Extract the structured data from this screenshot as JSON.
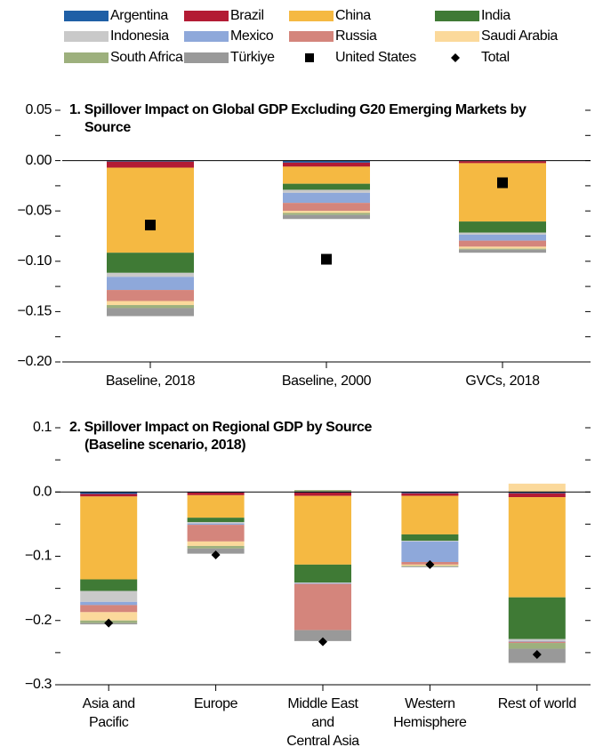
{
  "chart_data": [
    {
      "type": "bar",
      "stacked": true,
      "title": "1. Spillover Impact on Global GDP Excluding G20 Emerging Markets by Source",
      "categories": [
        "Baseline, 2018",
        "Baseline, 2000",
        "GVCs, 2018"
      ],
      "ylim": [
        -0.2,
        0.05
      ],
      "yticks": [
        {
          "value": 0.05,
          "label": "0.05"
        },
        {
          "value": 0,
          "label": "0.00"
        },
        {
          "value": -0.05,
          "label": "−0.05"
        },
        {
          "value": -0.1,
          "label": "−0.10"
        },
        {
          "value": -0.15,
          "label": "−0.15"
        },
        {
          "value": -0.2,
          "label": "−0.20"
        }
      ],
      "yminor": [
        0.025,
        -0.025,
        -0.075,
        -0.125,
        -0.175
      ],
      "series": [
        {
          "name": "Argentina",
          "color": "#1f5fa6",
          "values": [
            -0.001,
            -0.002,
            -0.0005
          ]
        },
        {
          "name": "Brazil",
          "color": "#b31b34",
          "values": [
            -0.006,
            -0.004,
            -0.002
          ]
        },
        {
          "name": "China",
          "color": "#f5b942",
          "values": [
            -0.0845,
            -0.017,
            -0.058
          ]
        },
        {
          "name": "India",
          "color": "#3f7a35",
          "values": [
            -0.02,
            -0.006,
            -0.011
          ]
        },
        {
          "name": "Indonesia",
          "color": "#c9c9c9",
          "values": [
            -0.004,
            -0.003,
            -0.002
          ]
        },
        {
          "name": "Mexico",
          "color": "#8ea8da",
          "values": [
            -0.013,
            -0.01,
            -0.006
          ]
        },
        {
          "name": "Russia",
          "color": "#d4857c",
          "values": [
            -0.011,
            -0.008,
            -0.006
          ]
        },
        {
          "name": "Saudi Arabia",
          "color": "#fbd99b",
          "values": [
            -0.004,
            -0.002,
            -0.002
          ]
        },
        {
          "name": "South Africa",
          "color": "#9db07d",
          "values": [
            -0.003,
            -0.002,
            -0.001
          ]
        },
        {
          "name": "Türkiye",
          "color": "#999999",
          "values": [
            -0.008,
            -0.004,
            -0.003
          ]
        },
        {
          "name": "United States",
          "color": "#000000",
          "marker": "square",
          "values": [
            -0.064,
            -0.098,
            -0.022
          ]
        },
        {
          "name": "Total",
          "color": "#000000",
          "marker": "diamond",
          "values": [
            null,
            null,
            null
          ]
        }
      ]
    },
    {
      "type": "bar",
      "stacked": true,
      "title": "2. Spillover Impact on Regional GDP by Source",
      "subtitle": "(Baseline scenario, 2018)",
      "categories": [
        [
          "Asia and",
          "Pacific"
        ],
        [
          "Europe"
        ],
        [
          "Middle East",
          "and",
          "Central Asia"
        ],
        [
          "Western",
          "Hemisphere"
        ],
        [
          "Rest of world"
        ]
      ],
      "ylim": [
        -0.3,
        0.1
      ],
      "yticks": [
        0.1,
        {
          "value": 0,
          "label": "0.0"
        },
        {
          "value": -0.1,
          "label": "−0.1"
        },
        {
          "value": -0.2,
          "label": "−0.2"
        },
        {
          "value": -0.3,
          "label": "−0.3"
        }
      ],
      "yminor": [
        0.05,
        -0.05,
        -0.15,
        -0.25
      ],
      "series": [
        {
          "values": [
            -0.003,
            -0.001,
            -0.001,
            -0.002,
            -0.002
          ]
        },
        {
          "values": [
            -0.004,
            -0.004,
            -0.005,
            -0.004,
            -0.006
          ]
        },
        {
          "values": [
            -0.129,
            -0.035,
            -0.107,
            -0.06,
            -0.156
          ]
        },
        {
          "values": [
            -0.018,
            -0.007,
            -0.028,
            -0.01,
            -0.065
          ]
        },
        {
          "values": [
            -0.017,
            -0.002,
            -0.001,
            -0.001,
            -0.003
          ]
        },
        {
          "values": [
            -0.005,
            -0.002,
            -0.001,
            -0.032,
            -0.001
          ]
        },
        {
          "values": [
            -0.011,
            -0.026,
            -0.072,
            -0.004,
            -0.002
          ]
        },
        {
          "values": [
            -0.013,
            -0.007,
            0,
            -0.002,
            0.013
          ]
        },
        {
          "values": [
            -0.004,
            -0.004,
            0.003,
            -0.001,
            -0.009
          ]
        },
        {
          "values": [
            -0.002,
            -0.008,
            -0.017,
            -0.001,
            -0.022
          ]
        },
        {
          "values": [
            null,
            null,
            null,
            null,
            null
          ]
        },
        {
          "values": [
            -0.204,
            -0.098,
            -0.233,
            -0.113,
            -0.253
          ]
        }
      ]
    }
  ]
}
